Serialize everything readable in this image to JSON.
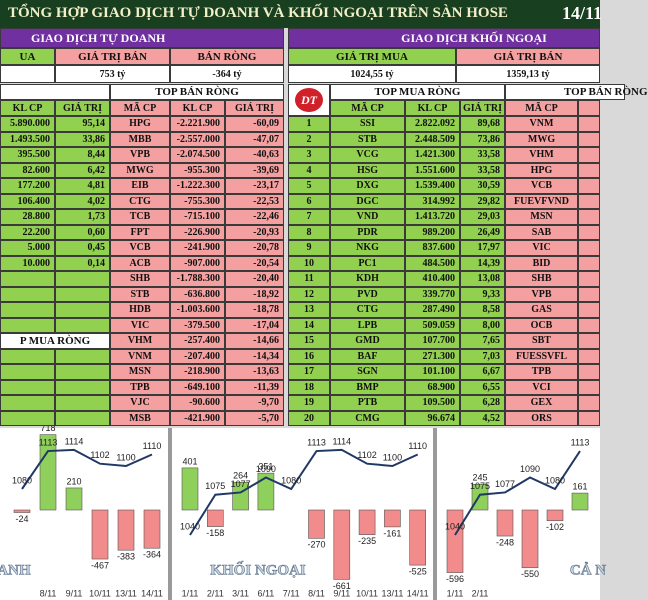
{
  "header": {
    "title": "TỔNG HỢP GIAO DỊCH TỰ DOANH VÀ KHỐI NGOẠI TRÊN SÀN HOSE",
    "date": "14/11"
  },
  "prop": {
    "title": "GIAO DỊCH TỰ DOANH",
    "summary_labels": [
      "UA",
      "GIÁ TRỊ BÁN",
      "BÁN RÒNG"
    ],
    "summary_values": [
      "753 tỷ",
      "-364 tỷ"
    ],
    "sell_title": "TOP BÁN RÒNG",
    "buy_footer": "P MUA RÒNG",
    "buy_columns": [
      "KL CP",
      "GIÁ TRỊ"
    ],
    "sell_columns": [
      "MÃ CP",
      "KL CP",
      "GIÁ TRỊ"
    ],
    "buy_rows": [
      [
        "5.890.000",
        "95,14"
      ],
      [
        "1.493.500",
        "33,86"
      ],
      [
        "395.500",
        "8,44"
      ],
      [
        "82.600",
        "6,42"
      ],
      [
        "177.200",
        "4,81"
      ],
      [
        "106.400",
        "4,02"
      ],
      [
        "28.800",
        "1,73"
      ],
      [
        "22.200",
        "0,60"
      ],
      [
        "5.000",
        "0,45"
      ],
      [
        "10.000",
        "0,14"
      ]
    ],
    "sell_rows": [
      [
        "HPG",
        "-2.221.900",
        "-60,09"
      ],
      [
        "MBB",
        "-2.557.000",
        "-47,07"
      ],
      [
        "VPB",
        "-2.074.500",
        "-40,63"
      ],
      [
        "MWG",
        "-955.300",
        "-39,69"
      ],
      [
        "EIB",
        "-1.222.300",
        "-23,17"
      ],
      [
        "CTG",
        "-755.300",
        "-22,53"
      ],
      [
        "TCB",
        "-715.100",
        "-22,46"
      ],
      [
        "FPT",
        "-226.900",
        "-20,93"
      ],
      [
        "VCB",
        "-241.900",
        "-20,78"
      ],
      [
        "ACB",
        "-907.000",
        "-20,54"
      ],
      [
        "SHB",
        "-1.788.300",
        "-20,40"
      ],
      [
        "STB",
        "-636.800",
        "-18,92"
      ],
      [
        "HDB",
        "-1.003.600",
        "-18,78"
      ],
      [
        "VIC",
        "-379.500",
        "-17,04"
      ],
      [
        "VHM",
        "-257.400",
        "-14,66"
      ],
      [
        "VNM",
        "-207.400",
        "-14,34"
      ],
      [
        "MSN",
        "-218.900",
        "-13,63"
      ],
      [
        "TPB",
        "-649.100",
        "-11,39"
      ],
      [
        "VJC",
        "-90.600",
        "-9,70"
      ],
      [
        "MSB",
        "-421.900",
        "-5,70"
      ]
    ]
  },
  "foreign": {
    "title": "GIAO DỊCH KHỐI NGOẠI",
    "summary_labels": [
      "GIÁ TRỊ MUA",
      "GIÁ TRỊ BÁN"
    ],
    "summary_values": [
      "1024,55 tỷ",
      "1359,13 tỷ"
    ],
    "logo": "DT",
    "buy_title": "TOP MUA RÒNG",
    "sell_title": "TOP BÁN RÒNG",
    "columns": [
      "MÃ CP",
      "KL CP",
      "GIÁ TRỊ",
      "MÃ CP"
    ],
    "rows": [
      [
        "1",
        "SSI",
        "2.822.092",
        "89,68",
        "VNM"
      ],
      [
        "2",
        "STB",
        "2.448.509",
        "73,86",
        "MWG"
      ],
      [
        "3",
        "VCG",
        "1.421.300",
        "33,58",
        "VHM"
      ],
      [
        "4",
        "HSG",
        "1.551.600",
        "33,58",
        "HPG"
      ],
      [
        "5",
        "DXG",
        "1.539.400",
        "30,59",
        "VCB"
      ],
      [
        "6",
        "DGC",
        "314.992",
        "29,82",
        "FUEVFVND"
      ],
      [
        "7",
        "VND",
        "1.413.720",
        "29,03",
        "MSN"
      ],
      [
        "8",
        "PDR",
        "989.200",
        "26,49",
        "SAB"
      ],
      [
        "9",
        "NKG",
        "837.600",
        "17,97",
        "VIC"
      ],
      [
        "10",
        "PC1",
        "484.500",
        "14,39",
        "BID"
      ],
      [
        "11",
        "KDH",
        "410.400",
        "13,08",
        "SHB"
      ],
      [
        "12",
        "PVD",
        "339.770",
        "9,33",
        "VPB"
      ],
      [
        "13",
        "CTG",
        "287.490",
        "8,58",
        "GAS"
      ],
      [
        "14",
        "LPB",
        "509.059",
        "8,00",
        "OCB"
      ],
      [
        "15",
        "GMD",
        "107.700",
        "7,65",
        "SBT"
      ],
      [
        "16",
        "BAF",
        "271.300",
        "7,03",
        "FUESSVFL"
      ],
      [
        "17",
        "SGN",
        "101.100",
        "6,67",
        "TPB"
      ],
      [
        "18",
        "BMP",
        "68.900",
        "6,55",
        "VCI"
      ],
      [
        "19",
        "PTB",
        "109.500",
        "6,28",
        "GEX"
      ],
      [
        "20",
        "CMG",
        "96.674",
        "4,52",
        "ORS"
      ]
    ]
  },
  "chart_data": [
    {
      "type": "combo",
      "caption": "ANH",
      "categories": [
        null,
        "8/11",
        "9/11",
        "10/11",
        "13/11",
        "14/11"
      ],
      "values": [
        -24,
        718,
        210,
        -467,
        -383,
        -364
      ],
      "line_values": [
        1080,
        1113,
        1114,
        1102,
        1100,
        1110
      ],
      "positive_color": "#8fcf5c",
      "negative_color": "#f28b8b",
      "line_color": "#1f3864"
    },
    {
      "type": "combo",
      "caption": "KHỐI NGOẠI",
      "categories": [
        "1/11",
        "2/11",
        "3/11",
        "6/11",
        "7/11",
        "8/11",
        "9/11",
        "10/11",
        "13/11",
        "14/11"
      ],
      "values": [
        401,
        -158,
        264,
        351,
        null,
        -270,
        -661,
        -235,
        -161,
        -525
      ],
      "line_values": [
        1040,
        1075,
        1077,
        1090,
        1080,
        1113,
        1114,
        1102,
        1100,
        1110
      ],
      "positive_color": "#8fcf5c",
      "negative_color": "#f28b8b",
      "line_color": "#1f3864"
    },
    {
      "type": "combo",
      "caption": "CẢ N",
      "categories": [
        "1/11",
        "2/11",
        null,
        null,
        null,
        null
      ],
      "values": [
        -596,
        245,
        -248,
        -550,
        -102,
        161
      ],
      "line_values": [
        1040,
        1075,
        1077,
        1090,
        1080,
        1113
      ],
      "positive_color": "#8fcf5c",
      "negative_color": "#f28b8b",
      "line_color": "#1f3864"
    }
  ]
}
